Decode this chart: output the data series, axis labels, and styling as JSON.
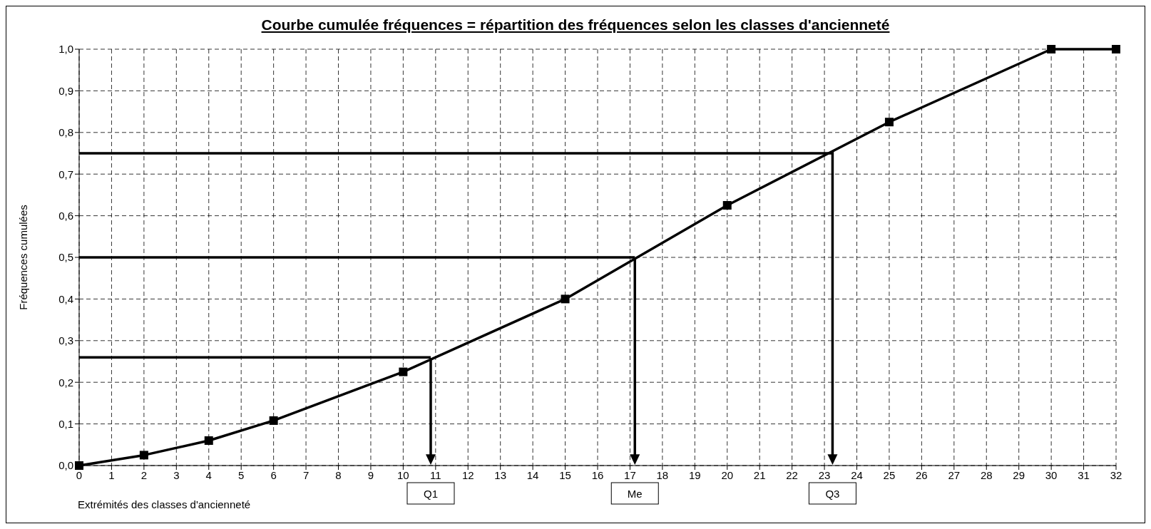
{
  "chart_data": {
    "type": "line",
    "title": "Courbe cumulée fréquences  =  répartition des fréquences selon les classes d'ancienneté",
    "xlabel": "Extrémités des classes d'ancienneté",
    "ylabel": "Fréquences cumulées",
    "x": [
      0,
      2,
      4,
      6,
      10,
      15,
      20,
      25,
      30,
      32
    ],
    "series": [
      {
        "color": "#000000",
        "values": [
          0,
          0.025,
          0.06,
          0.108,
          0.225,
          0.4,
          0.625,
          0.825,
          1.0,
          1.0
        ]
      }
    ],
    "xlim": [
      0,
      32
    ],
    "xticks": [
      0,
      1,
      2,
      3,
      4,
      5,
      6,
      7,
      8,
      9,
      10,
      11,
      12,
      13,
      14,
      15,
      16,
      17,
      18,
      19,
      20,
      21,
      22,
      23,
      24,
      25,
      26,
      27,
      28,
      29,
      30,
      31,
      32
    ],
    "ylim": [
      0,
      1
    ],
    "yticks": [
      {
        "value": 0,
        "label": "0,0"
      },
      {
        "value": 0.1,
        "label": "0,1"
      },
      {
        "value": 0.2,
        "label": "0,2"
      },
      {
        "value": 0.3,
        "label": "0,3"
      },
      {
        "value": 0.4,
        "label": "0,4"
      },
      {
        "value": 0.5,
        "label": "0,5"
      },
      {
        "value": 0.6,
        "label": "0,6"
      },
      {
        "value": 0.7,
        "label": "0,7"
      },
      {
        "value": 0.8,
        "label": "0,8"
      },
      {
        "value": 0.9,
        "label": "0,9"
      },
      {
        "value": 1,
        "label": "1,0"
      }
    ],
    "grid": true,
    "legend": false,
    "marker": "square",
    "line_style": "solid",
    "ref_lines": [
      {
        "axis": "y",
        "value": 0.26,
        "color": "#000000"
      },
      {
        "axis": "y",
        "value": 0.5,
        "color": "#000000"
      },
      {
        "axis": "y",
        "value": 0.75,
        "color": "#000000"
      },
      {
        "axis": "x",
        "value": 10.85,
        "label": "Q1",
        "color": "#000000"
      },
      {
        "axis": "x",
        "value": 17.15,
        "label": "Me",
        "color": "#000000"
      },
      {
        "axis": "x",
        "value": 23.25,
        "label": "Q3",
        "color": "#000000"
      }
    ]
  }
}
